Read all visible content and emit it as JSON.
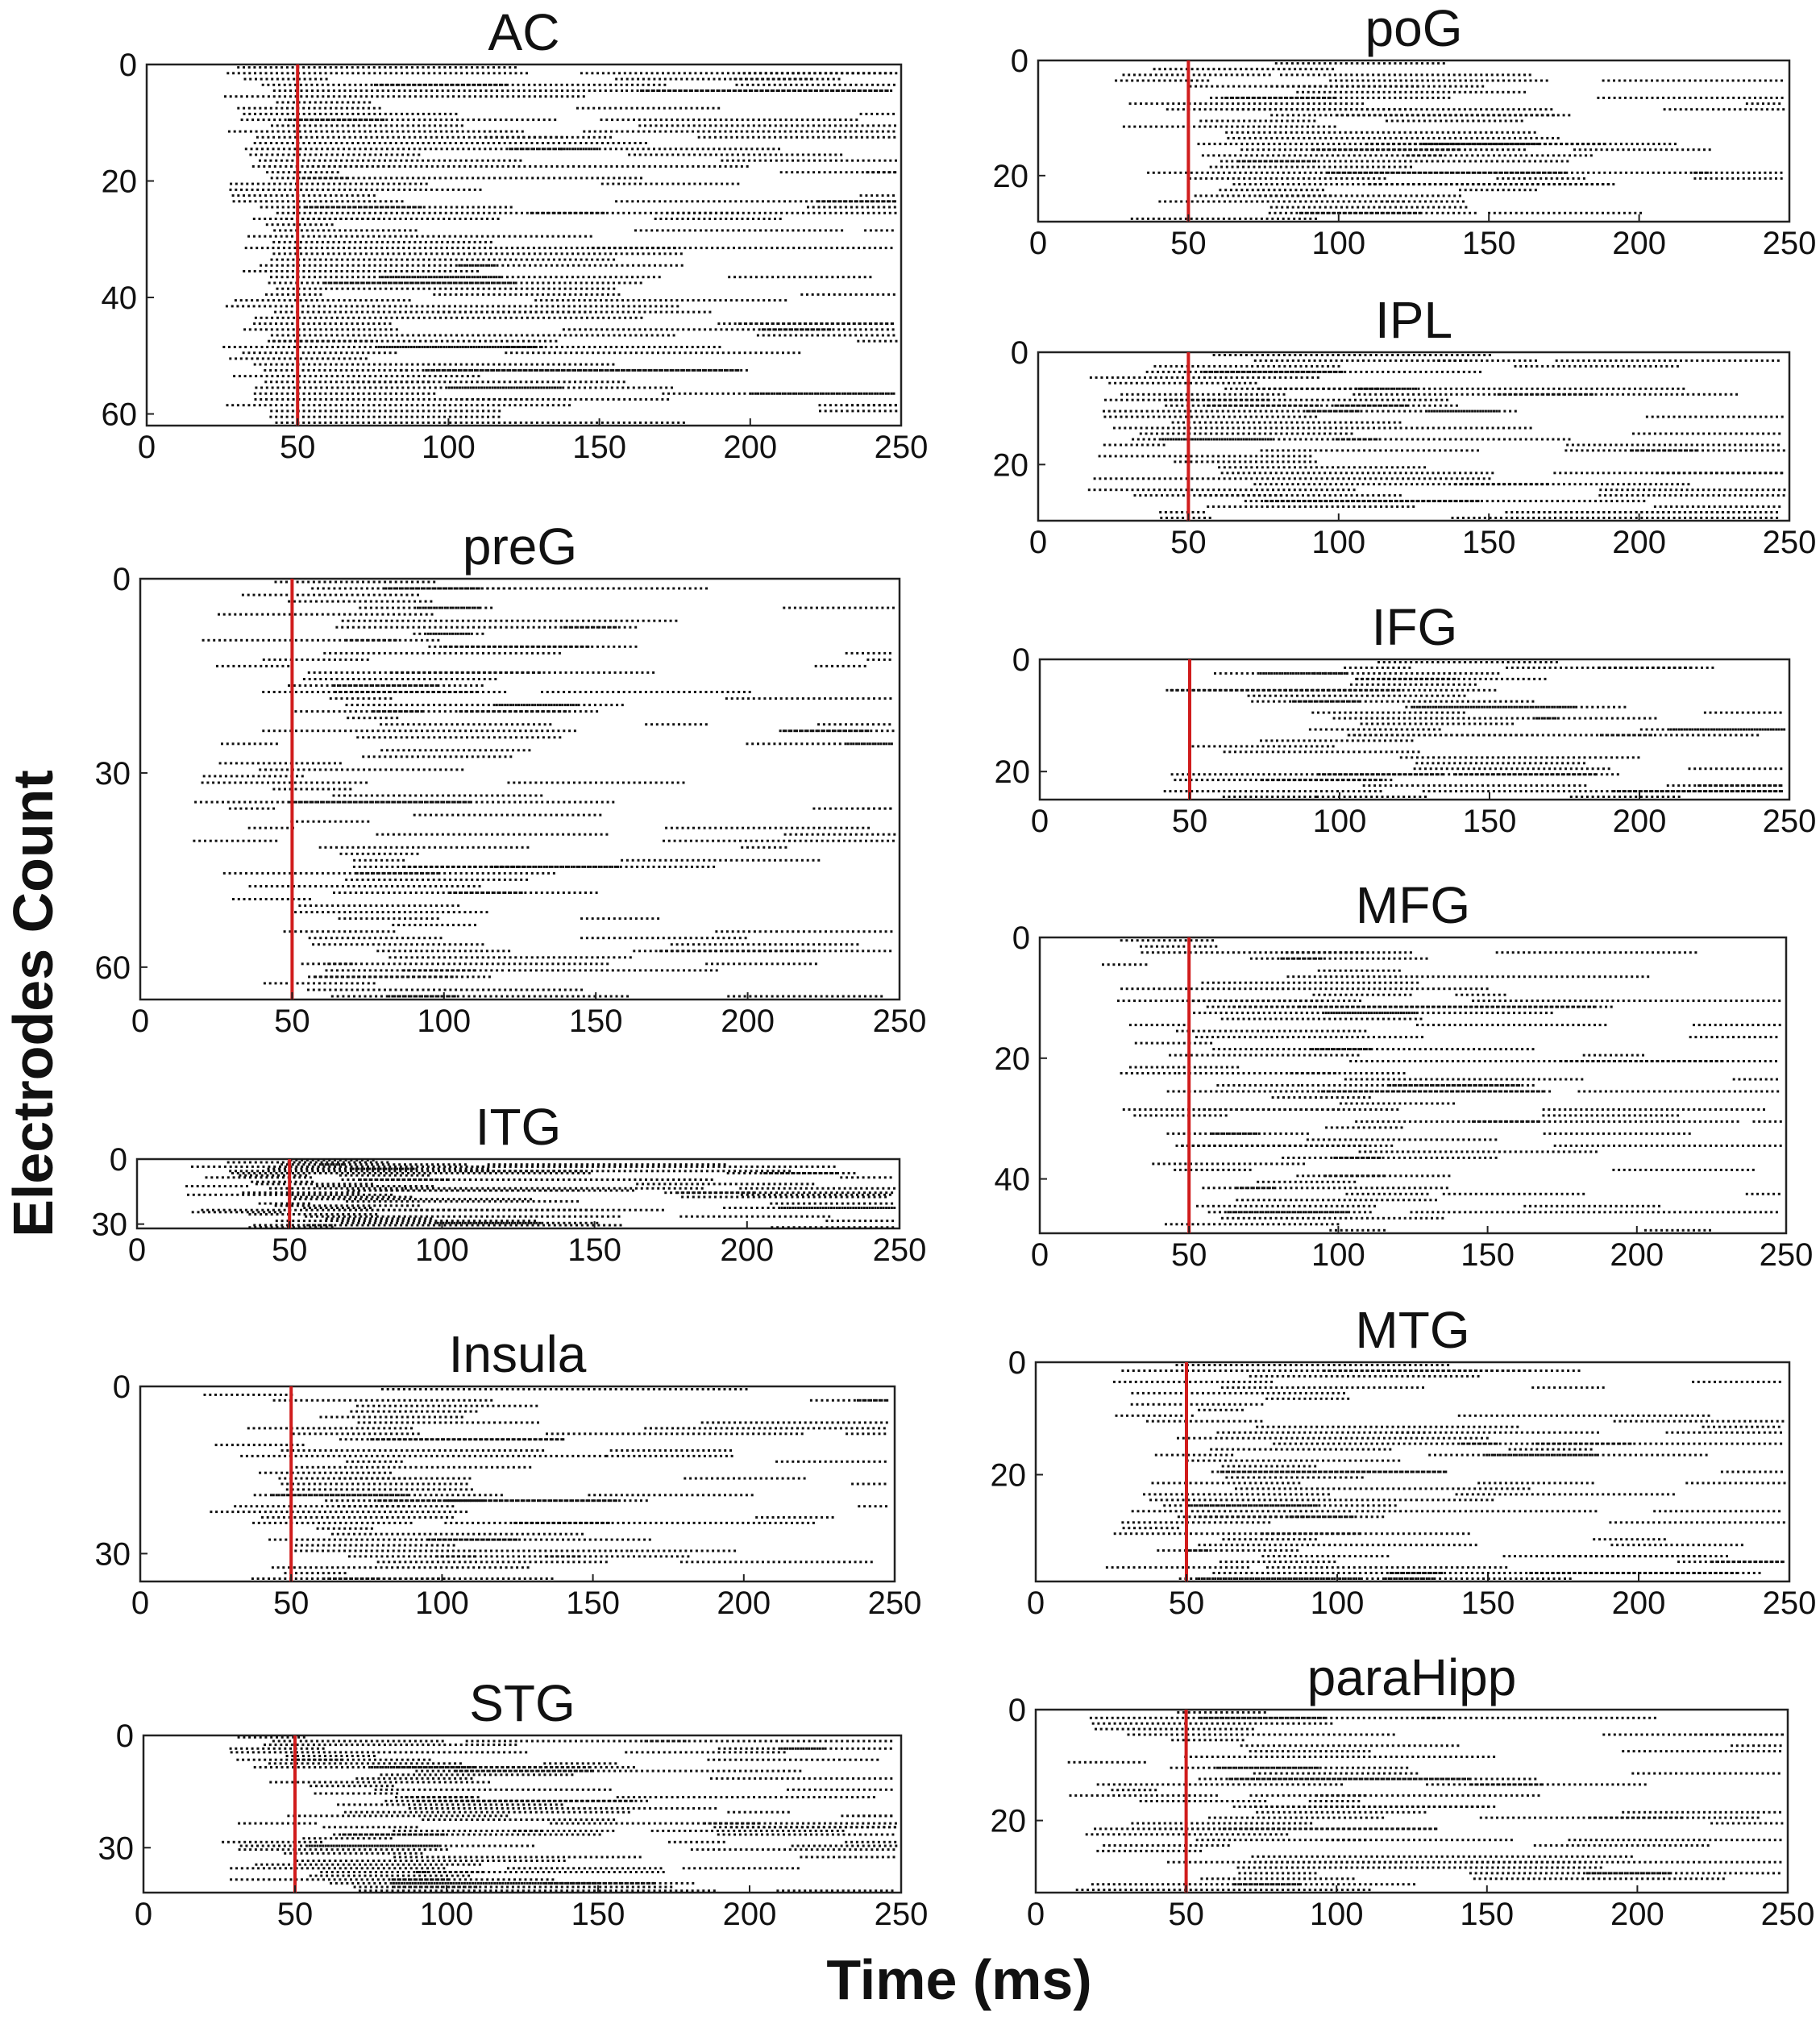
{
  "figure": {
    "xlabel": "Time (ms)",
    "ylabel": "Electrodes Count"
  },
  "chart_data": [
    {
      "type": "scatter",
      "title": "AC",
      "xlim": [
        0,
        250
      ],
      "ylim": [
        0,
        62
      ],
      "xticks": [
        0,
        50,
        100,
        150,
        200,
        250
      ],
      "yticks": [
        0,
        20,
        40,
        60
      ],
      "marker_x": 50,
      "density": 0.62,
      "xstart": [
        25,
        18
      ],
      "seed": 11
    },
    {
      "type": "scatter",
      "title": "preG",
      "xlim": [
        0,
        250
      ],
      "ylim": [
        0,
        65
      ],
      "xticks": [
        0,
        50,
        100,
        150,
        200,
        250
      ],
      "yticks": [
        0,
        30,
        60
      ],
      "marker_x": 50,
      "density": 0.24,
      "xstart": [
        15,
        80
      ],
      "seed": 23
    },
    {
      "type": "scatter",
      "title": "ITG",
      "xlim": [
        0,
        250
      ],
      "ylim": [
        0,
        32
      ],
      "xticks": [
        0,
        50,
        100,
        150,
        200,
        250
      ],
      "yticks": [
        0,
        30
      ],
      "marker_x": 50,
      "density": 0.3,
      "xstart": [
        12,
        60
      ],
      "seed": 37
    },
    {
      "type": "scatter",
      "title": "Insula",
      "xlim": [
        0,
        250
      ],
      "ylim": [
        0,
        35
      ],
      "xticks": [
        0,
        50,
        100,
        150,
        200,
        250
      ],
      "yticks": [
        0,
        30
      ],
      "marker_x": 50,
      "density": 0.3,
      "xstart": [
        20,
        60
      ],
      "seed": 41
    },
    {
      "type": "scatter",
      "title": "STG",
      "xlim": [
        0,
        250
      ],
      "ylim": [
        0,
        42
      ],
      "xticks": [
        0,
        50,
        100,
        150,
        200,
        250
      ],
      "yticks": [
        0,
        30
      ],
      "marker_x": 50,
      "density": 0.3,
      "xstart": [
        25,
        70
      ],
      "seed": 53
    },
    {
      "type": "scatter",
      "title": "poG",
      "xlim": [
        0,
        250
      ],
      "ylim": [
        0,
        28
      ],
      "xticks": [
        0,
        50,
        100,
        150,
        200,
        250
      ],
      "yticks": [
        0,
        20
      ],
      "marker_x": 50,
      "density": 0.3,
      "xstart": [
        22,
        70
      ],
      "seed": 61
    },
    {
      "type": "scatter",
      "title": "IPL",
      "xlim": [
        0,
        250
      ],
      "ylim": [
        0,
        30
      ],
      "xticks": [
        0,
        50,
        100,
        150,
        200,
        250
      ],
      "yticks": [
        0,
        20
      ],
      "marker_x": 50,
      "density": 0.4,
      "xstart": [
        15,
        60
      ],
      "seed": 71
    },
    {
      "type": "scatter",
      "title": "IFG",
      "xlim": [
        0,
        250
      ],
      "ylim": [
        0,
        25
      ],
      "xticks": [
        0,
        50,
        100,
        150,
        200,
        250
      ],
      "yticks": [
        0,
        20
      ],
      "marker_x": 50,
      "density": 0.26,
      "xstart": [
        40,
        90
      ],
      "seed": 83
    },
    {
      "type": "scatter",
      "title": "MFG",
      "xlim": [
        0,
        250
      ],
      "ylim": [
        0,
        49
      ],
      "xticks": [
        0,
        50,
        100,
        150,
        200,
        250
      ],
      "yticks": [
        0,
        20,
        40
      ],
      "marker_x": 50,
      "density": 0.24,
      "xstart": [
        20,
        90
      ],
      "seed": 97
    },
    {
      "type": "scatter",
      "title": "MTG",
      "xlim": [
        0,
        250
      ],
      "ylim": [
        0,
        39
      ],
      "xticks": [
        0,
        50,
        100,
        150,
        200,
        250
      ],
      "yticks": [
        0,
        20
      ],
      "marker_x": 50,
      "density": 0.36,
      "xstart": [
        20,
        60
      ],
      "seed": 101
    },
    {
      "type": "scatter",
      "title": "paraHipp",
      "xlim": [
        0,
        250
      ],
      "ylim": [
        0,
        33
      ],
      "xticks": [
        0,
        50,
        100,
        150,
        200,
        250
      ],
      "yticks": [
        0,
        20
      ],
      "marker_x": 50,
      "density": 0.36,
      "xstart": [
        10,
        70
      ],
      "seed": 113
    }
  ]
}
